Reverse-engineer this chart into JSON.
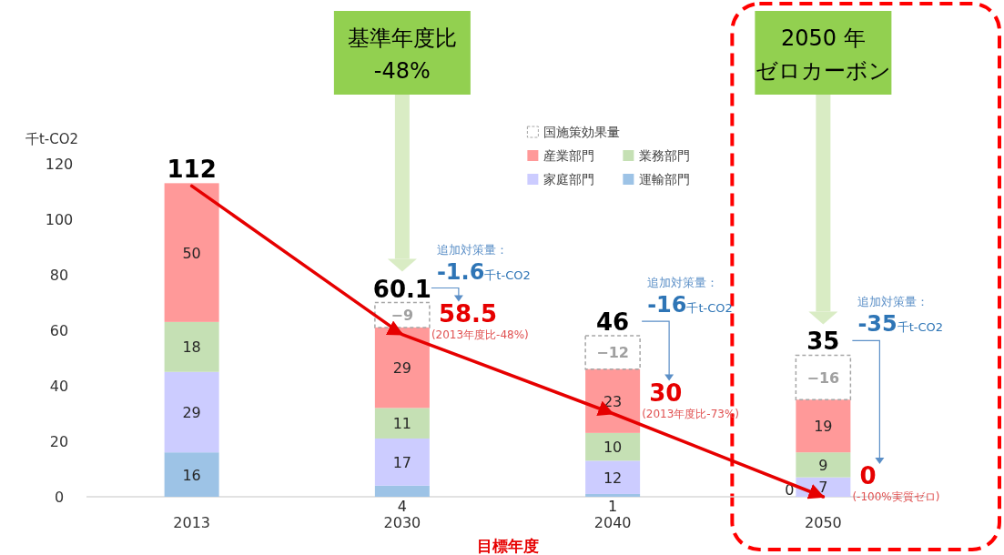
{
  "chart_data": {
    "type": "bar",
    "stacked": true,
    "categories": [
      "2013",
      "2030",
      "2040",
      "2050"
    ],
    "xlabel": "目標年度",
    "ylabel": "千t-CO2",
    "ylim": [
      0,
      120
    ],
    "yticks": [
      0,
      20,
      40,
      60,
      80,
      100,
      120
    ],
    "grid": false,
    "legend": "top right",
    "data_labels": true,
    "series": [
      {
        "name": "運輸部門",
        "color": "#9dc3e6",
        "values": [
          16,
          4,
          1,
          0
        ]
      },
      {
        "name": "家庭部門",
        "color": "#ccccff",
        "values": [
          29,
          17,
          12,
          7
        ]
      },
      {
        "name": "業務部門",
        "color": "#c5e0b4",
        "values": [
          18,
          11,
          10,
          9
        ]
      },
      {
        "name": "産業部門",
        "color": "#ff9999",
        "values": [
          50,
          29,
          23,
          19
        ]
      },
      {
        "name": "国施策効果量",
        "color": "#a6a6a6",
        "line_style": "dashed",
        "base": [
          null,
          70,
          58,
          51
        ],
        "values": [
          null,
          -9,
          -12,
          -16
        ],
        "value_labels": [
          null,
          "−9",
          "−12",
          "−16"
        ]
      },
      {
        "type": "line",
        "color": "#e60000",
        "values": [
          112,
          58.5,
          30,
          0
        ],
        "value_labels": [
          null,
          "58.5\n(2013年度比-48%)",
          "30\n(2013年度比-73%)",
          "0\n(-100%実質ゼロ)"
        ]
      }
    ],
    "annotations": [
      {
        "text": "112",
        "x": "2013",
        "y": 113
      },
      {
        "text": "60.1",
        "x": "2030",
        "y": 70
      },
      {
        "text": "46",
        "x": "2040",
        "y": 58
      },
      {
        "text": "35",
        "x": "2050",
        "y": 51
      },
      "基準年度比",
      "-48%",
      "2050 年",
      "ゼロカーボン",
      "追加対策量：",
      "-1.6千t-CO2",
      "追加対策量：",
      "-16千t-CO2",
      "追加対策量：",
      "-35千t-CO2"
    ]
  }
}
